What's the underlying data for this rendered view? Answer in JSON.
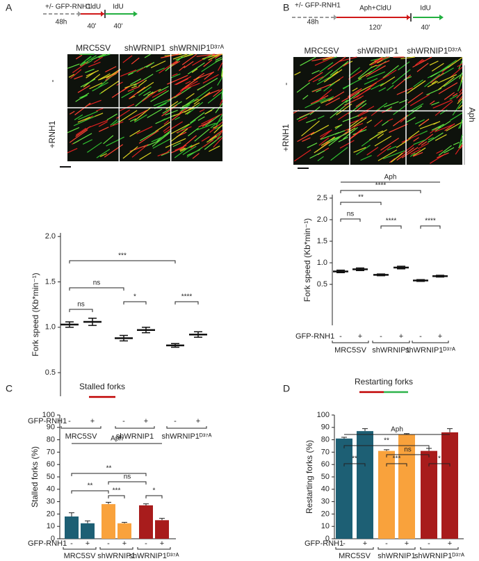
{
  "chart_data": [
    {
      "type": "dot",
      "panel": "A",
      "scheme": [
        "+/- GFP-RNH1",
        "48h",
        "CldU",
        "40'",
        "IdU",
        "40'"
      ],
      "image_columns": [
        "MRC5SV",
        "shWRNIP1",
        "shWRNIP1ᴰ³⁷ᴬ"
      ],
      "image_rows": [
        "-",
        "+RNH1"
      ],
      "ylabel": "Fork speed (Kb*min⁻¹)",
      "ylim": [
        0.24,
        2.04
      ],
      "yticks": [
        0.5,
        {
          "value": 1,
          "label": "1.0"
        },
        1.5,
        {
          "value": 2,
          "label": "2.0"
        }
      ],
      "categories": [
        "-",
        "+",
        "-",
        "+",
        "-",
        "+"
      ],
      "factor_label": "GFP-RNH1",
      "groups": [
        "MRC5SV",
        "shWRNIP1",
        "shWRNIP1ᴰ³⁷ᴬ"
      ],
      "colors": [
        "#1d5f74",
        "#1d5f74",
        "#f7b46a",
        "#f7b46a",
        "#b01e1e",
        "#b01e1e"
      ],
      "values": [
        1.03,
        1.06,
        0.88,
        0.97,
        0.8,
        0.92
      ],
      "errors": [
        0.03,
        0.04,
        0.03,
        0.03,
        0.02,
        0.03
      ],
      "annotations": [
        "***",
        "ns",
        "ns",
        "*",
        "****"
      ]
    },
    {
      "type": "dot",
      "panel": "B",
      "scheme": [
        "+/- GFP-RNH1",
        "48h",
        "Aph+CldU",
        "120'",
        "IdU",
        "40'"
      ],
      "image_columns": [
        "MRC5SV",
        "shWRNIP1",
        "shWRNIP1ᴰ³⁷ᴬ"
      ],
      "image_rows": [
        "-",
        "+RNH1"
      ],
      "image_side_label": "Aph",
      "ylabel": "Fork speed (Kb*min⁻¹)",
      "ylim": [
        -0.45,
        2.58
      ],
      "yticks": [
        0.5,
        {
          "value": 1,
          "label": "1.0"
        },
        1.5,
        {
          "value": 2,
          "label": "2.0"
        },
        2.5
      ],
      "categories": [
        "-",
        "+",
        "-",
        "+",
        "-",
        "+"
      ],
      "factor_label": "GFP-RNH1",
      "groups": [
        "MRC5SV",
        "shWRNIP1",
        "shWRNIP1ᴰ³⁷ᴬ"
      ],
      "colors": [
        "#1d5f74",
        "#1d5f74",
        "#f7b46a",
        "#f7b46a",
        "#b01e1e",
        "#b01e1e"
      ],
      "values": [
        0.8,
        0.85,
        0.72,
        0.89,
        0.59,
        0.69
      ],
      "errors": [
        0.03,
        0.03,
        0.02,
        0.03,
        0.02,
        0.02
      ],
      "annotations": [
        "Aph",
        "****",
        "**",
        "ns",
        "****",
        "****"
      ]
    },
    {
      "type": "bar",
      "panel": "C",
      "title": "Stalled forks",
      "ylabel": "Stalled forks (%)",
      "ylim": [
        0,
        100
      ],
      "yticks": [
        0,
        10,
        20,
        30,
        40,
        50,
        60,
        70,
        80,
        90,
        100
      ],
      "categories": [
        "-",
        "+",
        "-",
        "+",
        "-",
        "+"
      ],
      "factor_label": "GFP-RNH1",
      "groups": [
        "MRC5SV",
        "shWRNIP1",
        "shWRNIP1ᴰ³⁷ᴬ"
      ],
      "colors": [
        "#1d5f74",
        "#1d5f74",
        "#f9a23c",
        "#f9a23c",
        "#a81c1c",
        "#a81c1c"
      ],
      "values": [
        18,
        12.5,
        28,
        12.5,
        27,
        15
      ],
      "errors": [
        3,
        2,
        1.5,
        0.8,
        1.2,
        1.5
      ],
      "annotations": [
        "Aph",
        "**",
        "ns",
        "**",
        "***",
        "*"
      ]
    },
    {
      "type": "bar",
      "panel": "D",
      "title": "Restarting forks",
      "ylabel": "Restarting forks (%)",
      "ylim": [
        0,
        100
      ],
      "yticks": [
        0,
        10,
        20,
        30,
        40,
        50,
        60,
        70,
        80,
        90,
        100
      ],
      "categories": [
        "-",
        "+",
        "-",
        "+",
        "-",
        "+"
      ],
      "factor_label": "GFP-RNH1",
      "groups": [
        "MRC5SV",
        "shWRNIP1",
        "shWRNIP1ᴰ³⁷ᴬ"
      ],
      "colors": [
        "#1d5f74",
        "#1d5f74",
        "#f9a23c",
        "#f9a23c",
        "#a81c1c",
        "#a81c1c"
      ],
      "values": [
        81,
        87,
        71,
        84,
        71,
        86
      ],
      "errors": [
        1,
        2,
        1,
        1,
        2,
        3
      ],
      "annotations": [
        "Aph",
        "**",
        "ns",
        "**",
        "***",
        "*"
      ]
    }
  ]
}
